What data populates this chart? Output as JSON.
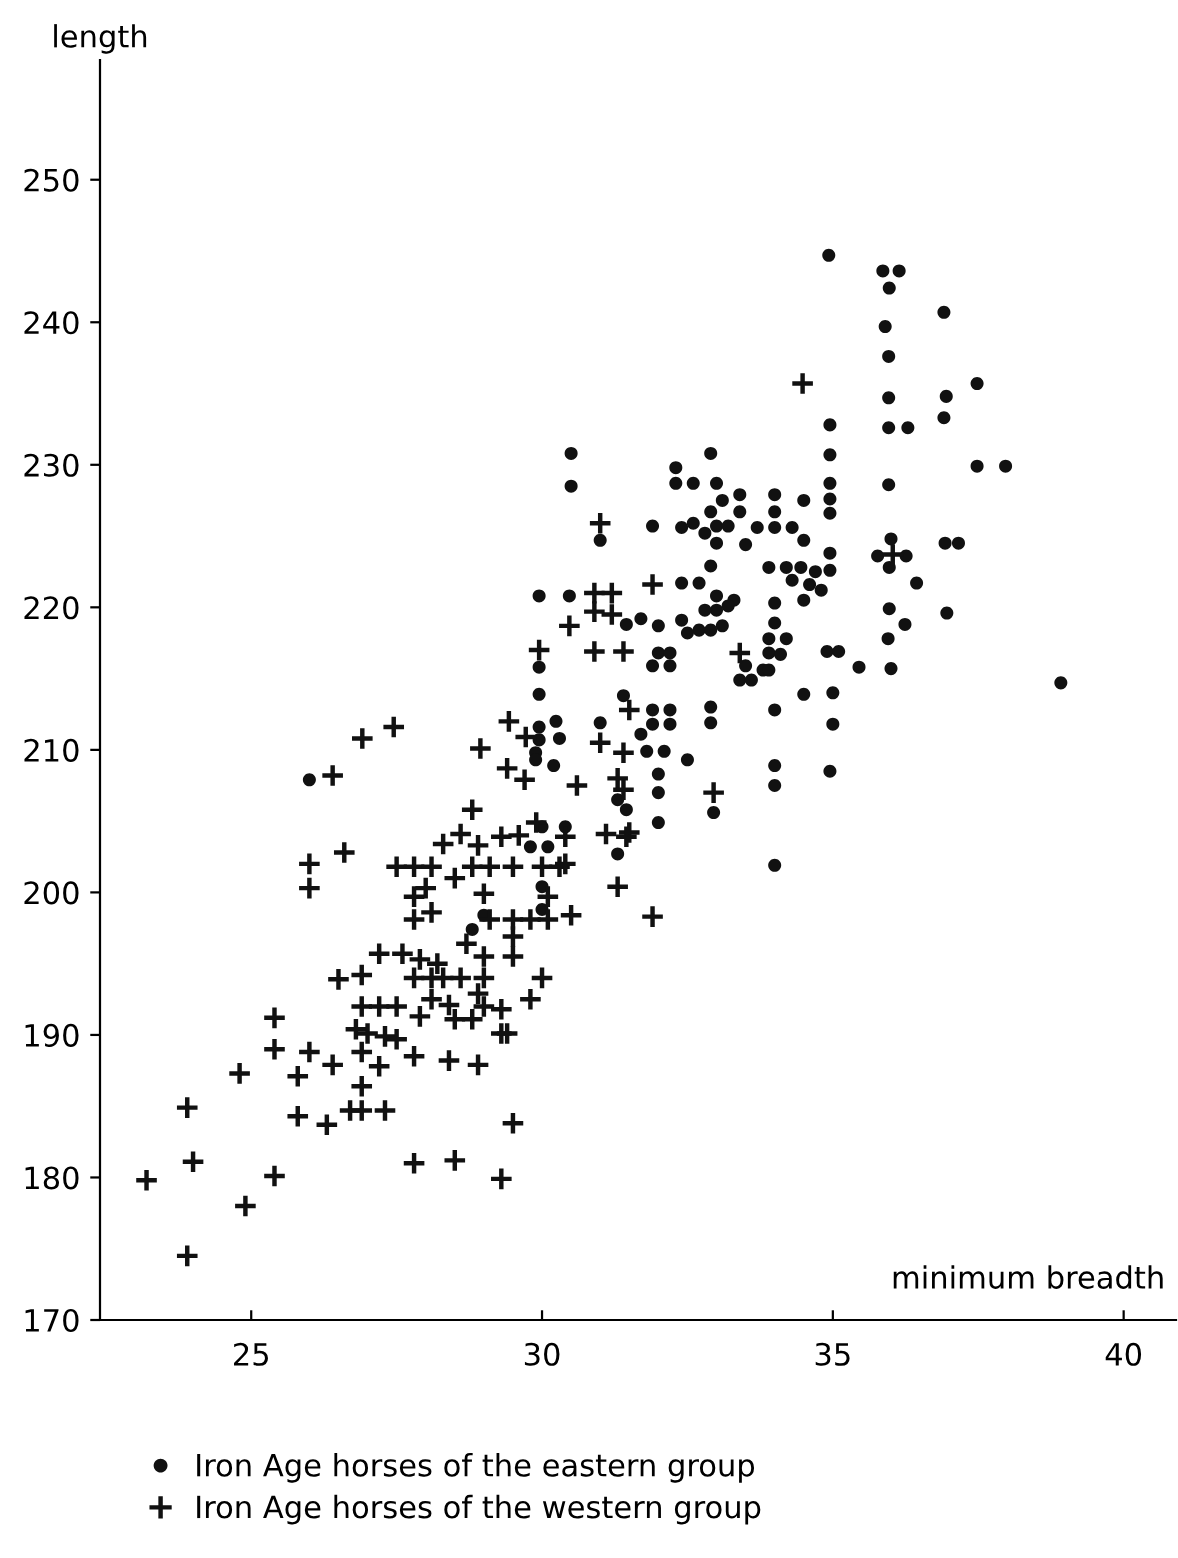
{
  "chart_data": {
    "type": "scatter",
    "xlabel": "minimum breadth",
    "ylabel": "length",
    "xlim": [
      22.4,
      40.9
    ],
    "ylim": [
      170,
      258.4
    ],
    "xticks": [
      25,
      30,
      35,
      40
    ],
    "yticks": [
      170,
      180,
      190,
      200,
      210,
      220,
      230,
      240,
      250
    ],
    "grid": false,
    "legend": "bottom",
    "series": [
      {
        "name": "Iron Age horses of the eastern group",
        "color": "#111111",
        "marker": "circle",
        "x": [
          26.0,
          28.8,
          29.0,
          30.0,
          30.0,
          31.3,
          30.2,
          31.3,
          30.0,
          30.4,
          30.1,
          29.8,
          29.95,
          30.47,
          29.95,
          29.95,
          29.95,
          30.24,
          29.95,
          30.3,
          29.89,
          29.89,
          30.5,
          30.5,
          32.9,
          32.3,
          32.3,
          32.6,
          33.0,
          33.4,
          34.0,
          34.5,
          33.1,
          32.9,
          33.4,
          34.0,
          31.9,
          32.4,
          32.6,
          32.8,
          33.0,
          33.2,
          33.0,
          33.5,
          33.7,
          34.0,
          34.3,
          34.5,
          31.0,
          32.4,
          32.7,
          32.9,
          33.9,
          34.2,
          34.45,
          34.7,
          34.3,
          34.6,
          34.8,
          34.5,
          33.0,
          33.3,
          33.0,
          33.2,
          32.8,
          32.4,
          32.7,
          32.5,
          32.9,
          33.1,
          34.0,
          34.0,
          33.9,
          34.2,
          33.9,
          34.1,
          33.8,
          33.9,
          33.5,
          33.4,
          33.6,
          32.0,
          32.2,
          31.9,
          32.2,
          31.45,
          31.7,
          32.0,
          34.9,
          35.1,
          35.45,
          34.5,
          35.0,
          35.0,
          34.95,
          34.0,
          34.0,
          34.0,
          34.0,
          32.9,
          32.9,
          32.95,
          31.4,
          31.9,
          32.2,
          31.9,
          32.2,
          31.7,
          31.0,
          31.8,
          32.1,
          32.5,
          31.45,
          32.0,
          32.0,
          32.0,
          34.95,
          34.95,
          34.95,
          34.95,
          34.95,
          34.95,
          34.95,
          34.93,
          35.86,
          36.14,
          35.97,
          35.9,
          35.96,
          35.96,
          35.96,
          36.29,
          35.96,
          36.91,
          36.95,
          36.91,
          37.48,
          37.48,
          37.97,
          36.93,
          37.16,
          36.0,
          35.77,
          36.26,
          35.97,
          36.44,
          36.96,
          35.97,
          36.24,
          35.95,
          36.0,
          38.92
        ],
        "values": [
          207.9,
          197.4,
          198.4,
          198.8,
          200.4,
          202.7,
          208.9,
          206.5,
          204.6,
          204.6,
          203.2,
          203.2,
          220.8,
          220.8,
          215.8,
          213.9,
          211.6,
          212.0,
          210.7,
          210.8,
          209.8,
          209.3,
          230.8,
          228.5,
          230.8,
          229.8,
          228.7,
          228.7,
          228.7,
          227.9,
          227.9,
          227.5,
          227.5,
          226.7,
          226.7,
          226.7,
          225.7,
          225.6,
          225.9,
          225.2,
          225.7,
          225.7,
          224.5,
          224.4,
          225.6,
          225.6,
          225.6,
          224.7,
          224.7,
          221.7,
          221.7,
          222.9,
          222.8,
          222.8,
          222.8,
          222.5,
          221.9,
          221.6,
          221.2,
          220.5,
          220.8,
          220.5,
          219.8,
          220.1,
          219.8,
          219.1,
          218.4,
          218.2,
          218.4,
          218.7,
          220.3,
          218.9,
          217.8,
          217.8,
          216.8,
          216.7,
          215.6,
          215.6,
          215.9,
          214.9,
          214.9,
          216.8,
          216.8,
          215.9,
          215.9,
          218.8,
          219.2,
          218.7,
          216.9,
          216.9,
          215.8,
          213.9,
          214.0,
          211.8,
          208.5,
          212.8,
          208.9,
          207.5,
          201.9,
          213.0,
          211.9,
          205.6,
          213.8,
          212.8,
          212.8,
          211.8,
          211.8,
          211.1,
          211.9,
          209.9,
          209.9,
          209.3,
          205.8,
          208.3,
          207.0,
          204.9,
          232.8,
          230.7,
          228.7,
          227.6,
          226.6,
          223.8,
          222.6,
          244.7,
          243.6,
          243.6,
          242.4,
          239.7,
          237.6,
          234.7,
          232.6,
          232.6,
          228.6,
          240.7,
          234.8,
          233.3,
          235.7,
          229.9,
          229.9,
          224.5,
          224.5,
          224.8,
          223.6,
          223.6,
          222.8,
          221.7,
          219.6,
          219.9,
          218.8,
          217.8,
          215.7,
          214.7
        ]
      },
      {
        "name": "Iron Age horses of the western group",
        "color": "#111111",
        "marker": "cross",
        "x": [
          23.2,
          23.9,
          24.0,
          23.9,
          24.8,
          24.9,
          25.4,
          25.4,
          25.4,
          25.8,
          25.8,
          26.0,
          26.3,
          26.4,
          26.5,
          26.0,
          26.0,
          26.6,
          26.4,
          26.9,
          26.7,
          26.9,
          27.3,
          26.9,
          27.2,
          26.9,
          27.2,
          27.6,
          27.8,
          28.5,
          29.3,
          29.5,
          27.8,
          28.4,
          28.9,
          29.3,
          29.4,
          29.8,
          30.0,
          26.9,
          27.2,
          27.5,
          26.8,
          27.0,
          27.3,
          27.5,
          27.9,
          28.1,
          28.4,
          28.5,
          28.8,
          29.0,
          29.3,
          28.9,
          27.8,
          28.1,
          28.3,
          28.6,
          29.0,
          27.9,
          28.2,
          28.7,
          29.0,
          29.5,
          29.5,
          29.0,
          27.8,
          28.1,
          27.8,
          28.0,
          29.1,
          29.5,
          29.8,
          30.1,
          30.5,
          30.1,
          31.3,
          27.5,
          27.8,
          28.1,
          28.5,
          28.8,
          29.1,
          29.5,
          30.0,
          30.3,
          30.4,
          28.3,
          28.6,
          28.9,
          29.3,
          29.6,
          29.9,
          30.4,
          31.1,
          31.5,
          28.8,
          29.4,
          29.7,
          30.6,
          31.3,
          30.47,
          29.95,
          29.43,
          29.72,
          28.94,
          26.91,
          27.45,
          31.0,
          31.9,
          30.9,
          31.4,
          30.9,
          31.2,
          30.9,
          31.2,
          33.4,
          31.5,
          31.0,
          31.4,
          32.95,
          31.4,
          31.45,
          31.9,
          34.48,
          36.03
        ],
        "values": [
          179.8,
          174.5,
          181.1,
          184.9,
          187.3,
          178.0,
          180.1,
          191.2,
          189.0,
          187.1,
          184.3,
          188.8,
          183.7,
          187.9,
          193.9,
          202.0,
          200.3,
          202.8,
          208.2,
          186.4,
          184.7,
          184.7,
          184.7,
          194.2,
          195.7,
          188.8,
          187.8,
          195.7,
          181.0,
          181.2,
          179.9,
          183.8,
          188.5,
          188.2,
          187.9,
          190.1,
          190.1,
          192.5,
          194.0,
          192.0,
          192.0,
          192.0,
          190.4,
          190.1,
          189.9,
          189.7,
          191.3,
          192.5,
          192.1,
          191.1,
          191.1,
          192.0,
          191.8,
          192.9,
          194.0,
          194.0,
          194.0,
          194.0,
          194.0,
          195.3,
          195.0,
          196.4,
          195.5,
          195.5,
          196.9,
          199.9,
          198.1,
          198.6,
          199.7,
          200.3,
          198.1,
          198.1,
          198.1,
          198.1,
          198.4,
          199.7,
          200.4,
          201.8,
          201.8,
          201.8,
          201.0,
          201.8,
          201.8,
          201.8,
          201.8,
          201.8,
          202.0,
          203.4,
          204.1,
          203.3,
          203.9,
          204.0,
          204.9,
          203.9,
          204.1,
          204.2,
          205.8,
          208.7,
          207.9,
          207.5,
          208.0,
          218.7,
          217.0,
          212.0,
          210.9,
          210.1,
          210.8,
          211.6,
          225.9,
          221.6,
          216.9,
          216.9,
          221.0,
          221.0,
          219.7,
          219.5,
          216.8,
          212.8,
          210.5,
          209.8,
          207.0,
          207.2,
          203.9,
          198.3,
          235.7,
          223.7
        ]
      }
    ]
  }
}
